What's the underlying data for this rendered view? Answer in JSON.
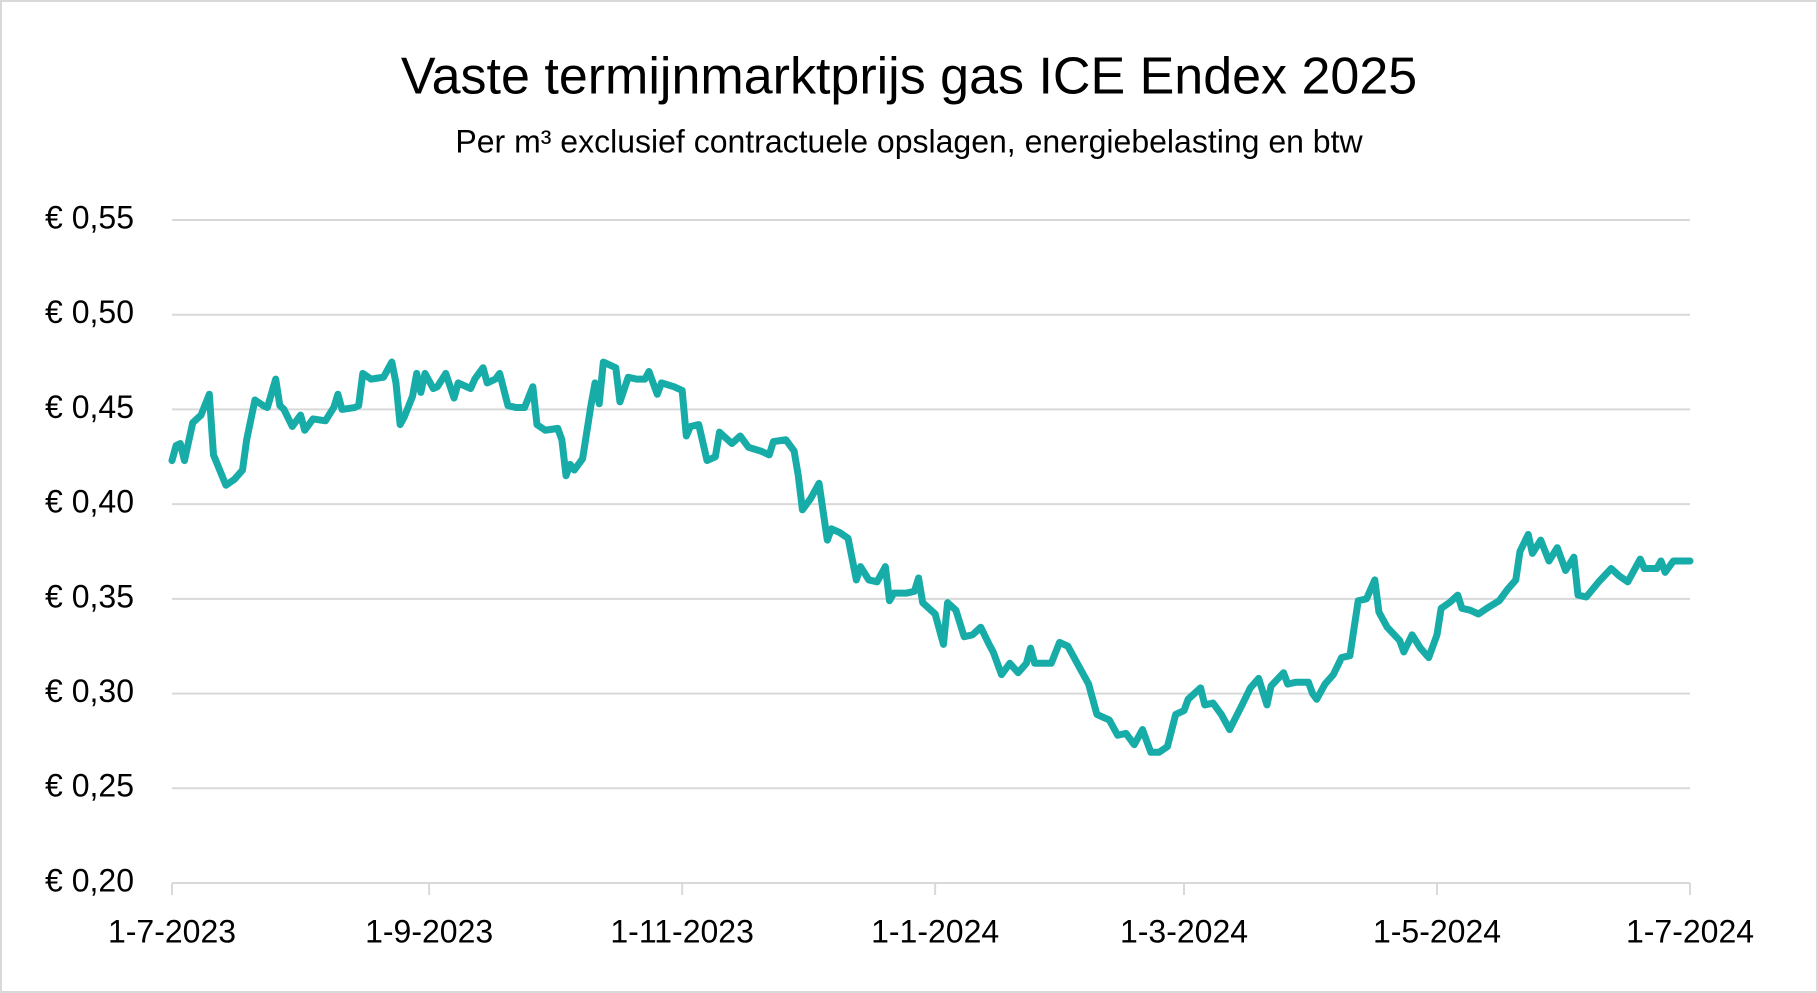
{
  "chart_data": {
    "type": "line",
    "title": "Vaste termijnmarktprijs gas ICE Endex 2025",
    "subtitle": "Per m³ exclusief contractuele opslagen, energiebelasting en btw",
    "x": [
      "2023-07-01",
      "2023-07-02",
      "2023-07-03",
      "2023-07-04",
      "2023-07-06",
      "2023-07-08",
      "2023-07-10",
      "2023-07-11",
      "2023-07-14",
      "2023-07-16",
      "2023-07-18",
      "2023-07-19",
      "2023-07-21",
      "2023-07-23",
      "2023-07-24",
      "2023-07-26",
      "2023-07-27",
      "2023-07-28",
      "2023-07-30",
      "2023-08-01",
      "2023-08-02",
      "2023-08-04",
      "2023-08-07",
      "2023-08-09",
      "2023-08-10",
      "2023-08-11",
      "2023-08-14",
      "2023-08-15",
      "2023-08-16",
      "2023-08-18",
      "2023-08-21",
      "2023-08-23",
      "2023-08-24",
      "2023-08-25",
      "2023-08-26",
      "2023-08-28",
      "2023-08-29",
      "2023-08-30",
      "2023-08-31",
      "2023-09-02",
      "2023-09-03",
      "2023-09-05",
      "2023-09-07",
      "2023-09-08",
      "2023-09-11",
      "2023-09-12",
      "2023-09-14",
      "2023-09-15",
      "2023-09-17",
      "2023-09-18",
      "2023-09-20",
      "2023-09-22",
      "2023-09-24",
      "2023-09-26",
      "2023-09-27",
      "2023-09-29",
      "2023-10-02",
      "2023-10-03",
      "2023-10-04",
      "2023-10-05",
      "2023-10-06",
      "2023-10-08",
      "2023-10-10",
      "2023-10-11",
      "2023-10-12",
      "2023-10-13",
      "2023-10-16",
      "2023-10-17",
      "2023-10-19",
      "2023-10-21",
      "2023-10-23",
      "2023-10-24",
      "2023-10-26",
      "2023-10-27",
      "2023-10-30",
      "2023-11-01",
      "2023-11-02",
      "2023-11-03",
      "2023-11-05",
      "2023-11-07",
      "2023-11-09",
      "2023-11-10",
      "2023-11-13",
      "2023-11-15",
      "2023-11-17",
      "2023-11-20",
      "2023-11-22",
      "2023-11-23",
      "2023-11-26",
      "2023-11-28",
      "2023-11-29",
      "2023-11-30",
      "2023-12-02",
      "2023-12-04",
      "2023-12-06",
      "2023-12-07",
      "2023-12-09",
      "2023-12-11",
      "2023-12-13",
      "2023-12-14",
      "2023-12-16",
      "2023-12-18",
      "2023-12-20",
      "2023-12-21",
      "2023-12-22",
      "2023-12-25",
      "2023-12-27",
      "2023-12-28",
      "2023-12-29",
      "2024-01-01",
      "2024-01-03",
      "2024-01-04",
      "2024-01-06",
      "2024-01-08",
      "2024-01-10",
      "2024-01-12",
      "2024-01-14",
      "2024-01-15",
      "2024-01-17",
      "2024-01-19",
      "2024-01-21",
      "2024-01-23",
      "2024-01-24",
      "2024-01-25",
      "2024-01-29",
      "2024-01-31",
      "2024-02-02",
      "2024-02-05",
      "2024-02-07",
      "2024-02-09",
      "2024-02-12",
      "2024-02-14",
      "2024-02-16",
      "2024-02-18",
      "2024-02-20",
      "2024-02-22",
      "2024-02-24",
      "2024-02-26",
      "2024-02-28",
      "2024-03-01",
      "2024-03-02",
      "2024-03-05",
      "2024-03-06",
      "2024-03-08",
      "2024-03-10",
      "2024-03-12",
      "2024-03-15",
      "2024-03-17",
      "2024-03-19",
      "2024-03-21",
      "2024-03-22",
      "2024-03-25",
      "2024-03-26",
      "2024-03-28",
      "2024-03-31",
      "2024-04-01",
      "2024-04-02",
      "2024-04-04",
      "2024-04-06",
      "2024-04-08",
      "2024-04-10",
      "2024-04-12",
      "2024-04-14",
      "2024-04-16",
      "2024-04-17",
      "2024-04-19",
      "2024-04-22",
      "2024-04-23",
      "2024-04-25",
      "2024-04-27",
      "2024-04-29",
      "2024-05-01",
      "2024-05-02",
      "2024-05-04",
      "2024-05-06",
      "2024-05-07",
      "2024-05-09",
      "2024-05-11",
      "2024-05-13",
      "2024-05-16",
      "2024-05-18",
      "2024-05-20",
      "2024-05-21",
      "2024-05-23",
      "2024-05-24",
      "2024-05-26",
      "2024-05-28",
      "2024-05-30",
      "2024-06-01",
      "2024-06-03",
      "2024-06-04",
      "2024-06-06",
      "2024-06-09",
      "2024-06-12",
      "2024-06-14",
      "2024-06-16",
      "2024-06-19",
      "2024-06-20",
      "2024-06-23",
      "2024-06-24",
      "2024-06-25",
      "2024-06-27",
      "2024-07-01"
    ],
    "series": [
      {
        "color": "#17aca8",
        "values": [
          0.423,
          0.431,
          0.432,
          0.423,
          0.443,
          0.447,
          0.458,
          0.426,
          0.41,
          0.413,
          0.418,
          0.434,
          0.455,
          0.452,
          0.451,
          0.466,
          0.452,
          0.45,
          0.441,
          0.447,
          0.439,
          0.445,
          0.444,
          0.451,
          0.458,
          0.45,
          0.451,
          0.452,
          0.469,
          0.466,
          0.467,
          0.475,
          0.464,
          0.442,
          0.446,
          0.457,
          0.469,
          0.459,
          0.469,
          0.461,
          0.462,
          0.469,
          0.456,
          0.464,
          0.461,
          0.466,
          0.472,
          0.464,
          0.466,
          0.469,
          0.452,
          0.451,
          0.451,
          0.462,
          0.442,
          0.439,
          0.44,
          0.434,
          0.415,
          0.421,
          0.418,
          0.424,
          0.452,
          0.464,
          0.453,
          0.475,
          0.472,
          0.454,
          0.467,
          0.466,
          0.466,
          0.47,
          0.458,
          0.464,
          0.462,
          0.46,
          0.436,
          0.441,
          0.442,
          0.423,
          0.425,
          0.438,
          0.432,
          0.436,
          0.43,
          0.428,
          0.426,
          0.433,
          0.434,
          0.428,
          0.415,
          0.397,
          0.403,
          0.411,
          0.381,
          0.387,
          0.385,
          0.382,
          0.36,
          0.367,
          0.36,
          0.359,
          0.367,
          0.349,
          0.353,
          0.353,
          0.354,
          0.361,
          0.348,
          0.342,
          0.326,
          0.348,
          0.344,
          0.33,
          0.331,
          0.335,
          0.326,
          0.322,
          0.31,
          0.316,
          0.311,
          0.316,
          0.324,
          0.316,
          0.316,
          0.327,
          0.325,
          0.313,
          0.305,
          0.289,
          0.286,
          0.278,
          0.279,
          0.273,
          0.281,
          0.269,
          0.269,
          0.272,
          0.289,
          0.291,
          0.297,
          0.303,
          0.294,
          0.295,
          0.289,
          0.281,
          0.294,
          0.303,
          0.308,
          0.294,
          0.304,
          0.311,
          0.305,
          0.306,
          0.306,
          0.3,
          0.297,
          0.305,
          0.31,
          0.319,
          0.32,
          0.349,
          0.35,
          0.36,
          0.343,
          0.335,
          0.328,
          0.322,
          0.331,
          0.324,
          0.319,
          0.331,
          0.345,
          0.348,
          0.352,
          0.345,
          0.344,
          0.342,
          0.345,
          0.349,
          0.355,
          0.36,
          0.375,
          0.384,
          0.374,
          0.381,
          0.37,
          0.377,
          0.365,
          0.372,
          0.352,
          0.351,
          0.359,
          0.366,
          0.362,
          0.359,
          0.371,
          0.366,
          0.366,
          0.37,
          0.364,
          0.37,
          0.37
        ]
      }
    ],
    "xlim": [
      "2023-07-01",
      "2024-07-01"
    ],
    "xticks": [
      {
        "value": "2023-07-01",
        "label": "1-7-2023"
      },
      {
        "value": "2023-09-01",
        "label": "1-9-2023"
      },
      {
        "value": "2023-11-01",
        "label": "1-11-2023"
      },
      {
        "value": "2024-01-01",
        "label": "1-1-2024"
      },
      {
        "value": "2024-03-01",
        "label": "1-3-2024"
      },
      {
        "value": "2024-05-01",
        "label": "1-5-2024"
      },
      {
        "value": "2024-07-01",
        "label": "1-7-2024"
      }
    ],
    "ylim": [
      0.2,
      0.55
    ],
    "yticks": [
      {
        "value": 0.2,
        "label": "€ 0,20"
      },
      {
        "value": 0.25,
        "label": "€ 0,25"
      },
      {
        "value": 0.3,
        "label": "€ 0,30"
      },
      {
        "value": 0.35,
        "label": "€ 0,35"
      },
      {
        "value": 0.4,
        "label": "€ 0,40"
      },
      {
        "value": 0.45,
        "label": "€ 0,45"
      },
      {
        "value": 0.5,
        "label": "€ 0,50"
      },
      {
        "value": 0.55,
        "label": "€ 0,55"
      }
    ],
    "grid": true
  }
}
